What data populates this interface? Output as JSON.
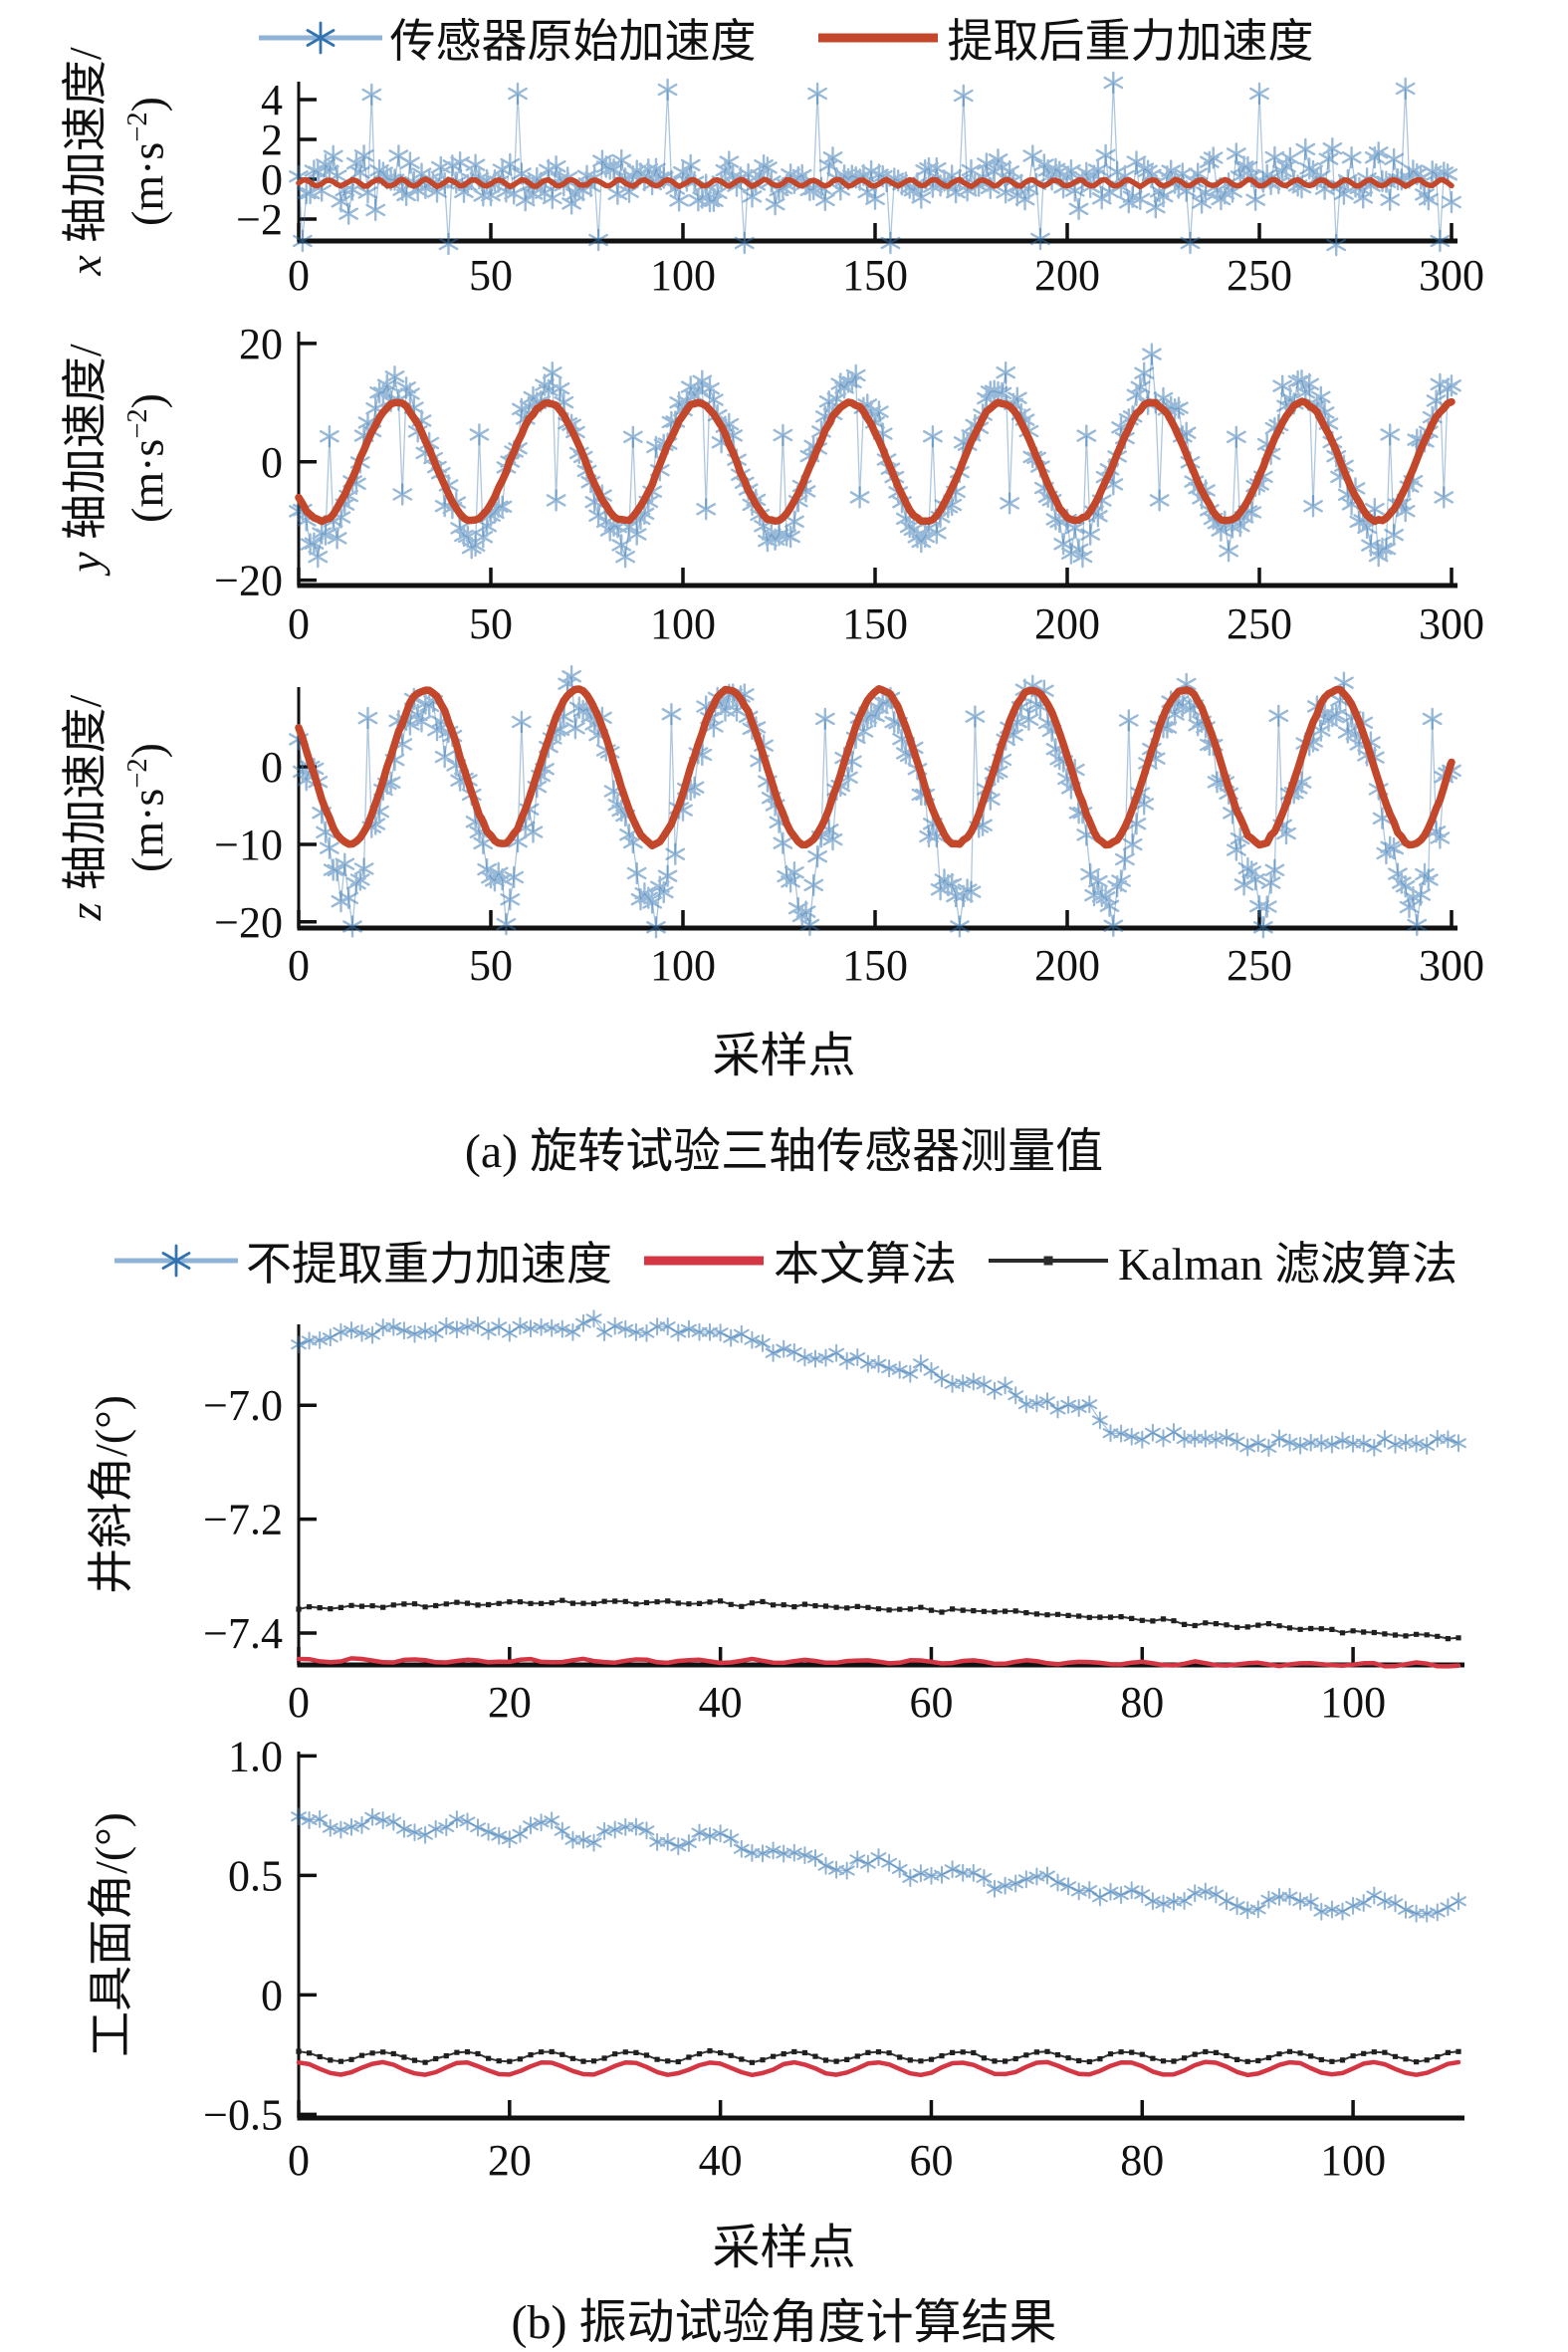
{
  "figure": {
    "background": "#ffffff"
  },
  "section_a": {
    "xlabel": "采样点",
    "caption": "(a) 旋转试验三轴传感器测量值"
  },
  "section_b": {
    "xlabel": "采样点",
    "caption": "(b) 振动试验角度计算结果"
  },
  "legend_a": {
    "items": [
      {
        "label": "传感器原始加速度",
        "symbol": "asterisk-line",
        "color": "#3273AF",
        "line_color": "#8FB3D6"
      },
      {
        "label": "提取后重力加速度",
        "symbol": "line",
        "color": "#C3472B"
      }
    ]
  },
  "legend_b": {
    "items": [
      {
        "label": "不提取重力加速度",
        "symbol": "asterisk-line",
        "color": "#3273AF",
        "line_color": "#8FB3D6"
      },
      {
        "label": "本文算法",
        "symbol": "line",
        "color": "#D43743"
      },
      {
        "label": "Kalman 滤波算法",
        "symbol": "dot-line",
        "color": "#2b2b2b"
      }
    ]
  },
  "chart_data": [
    {
      "id": "x-axis-acceleration",
      "type": "line",
      "n": 301,
      "grid": false,
      "xlim": [
        0,
        300
      ],
      "ylim": [
        -3.1,
        4.9
      ],
      "xticks": [
        0,
        50,
        100,
        150,
        200,
        250,
        300
      ],
      "xtick_labels": [
        "0",
        "50",
        "100",
        "150",
        "200",
        "250",
        "300"
      ],
      "yticks": [
        4,
        2,
        0,
        -2
      ],
      "ytick_labels": [
        "4",
        "2",
        "0",
        "−2"
      ],
      "ylabel": {
        "var": "x",
        "cn": "轴加速度/",
        "unit_pre": "(m·s",
        "unit_sup": "−2",
        "unit_post": ")"
      },
      "series": [
        {
          "name": "传感器原始加速度",
          "color": "#3273AF",
          "marker": "asterisk",
          "marker_size": 10,
          "marker_lw": 2.4,
          "marker_alpha": 0.5,
          "line_width": 1.3,
          "line_alpha": 0.4,
          "model": {
            "kind": "flat",
            "base": -0.05,
            "noise": 0.62,
            "spikes_x": [
              1,
              19,
              39,
              57,
              78,
              96,
              116,
              135,
              154,
              173,
              193,
              212,
              232,
              250,
              270,
              288,
              297
            ],
            "spikes_y": [
              -3.1,
              4.25,
              -3.25,
              4.3,
              -3.05,
              4.5,
              -3.2,
              4.3,
              -3.2,
              4.2,
              -3.0,
              4.85,
              -3.2,
              4.3,
              -3.3,
              4.55,
              -3.1
            ]
          }
        },
        {
          "name": "提取后重力加速度",
          "color": "#C3472B",
          "marker": "none",
          "line_width": 5.5,
          "line_alpha": 1,
          "model": {
            "kind": "flat",
            "base": -0.18,
            "ripple": [
              0.16,
              6.3,
              0
            ],
            "noise": 0.018
          }
        }
      ]
    },
    {
      "id": "y-axis-acceleration",
      "type": "line",
      "n": 301,
      "grid": false,
      "xlim": [
        0,
        300
      ],
      "ylim": [
        -20.9,
        22
      ],
      "xticks": [
        0,
        50,
        100,
        150,
        200,
        250,
        300
      ],
      "xtick_labels": [
        "0",
        "50",
        "100",
        "150",
        "200",
        "250",
        "300"
      ],
      "yticks": [
        20,
        0,
        -20
      ],
      "ytick_labels": [
        "20",
        "0",
        "−20"
      ],
      "ylabel": {
        "var": "y",
        "cn": "轴加速度/",
        "unit_pre": "(m·s",
        "unit_sup": "−2",
        "unit_post": ")"
      },
      "series": [
        {
          "name": "传感器原始加速度",
          "color": "#3273AF",
          "marker": "asterisk",
          "marker_size": 10,
          "marker_lw": 2.4,
          "marker_alpha": 0.5,
          "line_width": 1.3,
          "line_alpha": 0.4,
          "model": {
            "kind": "sine",
            "center": 0,
            "amp": 12.9,
            "period": 39.3,
            "peak_x": 25.5,
            "noise": 1.7,
            "spikes_x": [
              8,
              27,
              47,
              67,
              87,
              106,
              126,
              146,
              165,
              185,
              205,
              224,
              244,
              264,
              284,
              298
            ],
            "spikes_y": [
              4.3,
              -5.5,
              4.6,
              -6.5,
              4.2,
              -8,
              4.5,
              -6,
              4.3,
              -7,
              4.4,
              -6.5,
              4.2,
              -7.5,
              4.6,
              -6
            ]
          }
        },
        {
          "name": "提取后重力加速度",
          "color": "#C3472B",
          "marker": "none",
          "line_width": 7.5,
          "line_alpha": 1,
          "model": {
            "kind": "sine",
            "center": 0,
            "amp": 10,
            "period": 39.3,
            "peak_x": 25.5,
            "noise": 0.12
          }
        }
      ]
    },
    {
      "id": "z-axis-acceleration",
      "type": "line",
      "n": 301,
      "grid": false,
      "xlim": [
        0,
        300
      ],
      "ylim": [
        -20.8,
        10.3
      ],
      "xticks": [
        0,
        50,
        100,
        150,
        200,
        250,
        300
      ],
      "xtick_labels": [
        "0",
        "50",
        "100",
        "150",
        "200",
        "250",
        "300"
      ],
      "yticks": [
        0,
        -10,
        -20
      ],
      "ytick_labels": [
        "0",
        "−10",
        "−20"
      ],
      "ylabel": {
        "var": "z",
        "cn": "轴加速度/",
        "unit_pre": "(m·s",
        "unit_sup": "−2",
        "unit_post": ")"
      },
      "series": [
        {
          "name": "传感器原始加速度",
          "color": "#3273AF",
          "marker": "asterisk",
          "marker_size": 10,
          "marker_lw": 2.4,
          "marker_alpha": 0.5,
          "line_width": 1.3,
          "line_alpha": 0.4,
          "model": {
            "kind": "sine",
            "center": -1.4,
            "amp": 9.6,
            "period": 39.5,
            "peak_x": 33,
            "noise": 1.55,
            "dip": 6.2,
            "spikes_x": [
              14,
              18,
              54,
              58,
              93,
              97,
              133,
              137,
              172,
              176,
              212,
              216,
              251,
              255,
              291,
              295
            ],
            "spikes_y": [
              -20.6,
              6.3,
              -20.3,
              5.8,
              -20.7,
              6.8,
              -20.4,
              6.2,
              -20.6,
              6.5,
              -20.5,
              6.0,
              -20.7,
              6.6,
              -20.4,
              6.2
            ]
          }
        },
        {
          "name": "提取后重力加速度",
          "color": "#C3472B",
          "marker": "none",
          "line_width": 7.5,
          "line_alpha": 1,
          "model": {
            "kind": "sine",
            "center": 0,
            "amp": 10,
            "period": 39.5,
            "peak_x": 33,
            "noise": 0.1
          }
        }
      ]
    },
    {
      "id": "inclination-angle",
      "type": "line",
      "n": 111,
      "grid": false,
      "xlim": [
        0,
        110
      ],
      "ylim": [
        -7.456,
        -6.858
      ],
      "xticks": [
        0,
        20,
        40,
        60,
        80,
        100
      ],
      "xtick_labels": [
        "0",
        "20",
        "40",
        "60",
        "80",
        "100"
      ],
      "yticks": [
        -7.0,
        -7.2,
        -7.4
      ],
      "ytick_labels": [
        "−7.0",
        "−7.2",
        "−7.4"
      ],
      "ylabel": {
        "text": "井斜角/(°)"
      },
      "series": [
        {
          "name": "不提取重力加速度",
          "color": "#3273AF",
          "marker": "asterisk",
          "marker_size": 8,
          "marker_lw": 2,
          "marker_alpha": 0.55,
          "line_width": 1.2,
          "line_alpha": 0.45,
          "model": {
            "kind": "piecewise",
            "noise": 0.0052,
            "breakpoints": [
              [
                0,
                -6.888
              ],
              [
                4,
                -6.877
              ],
              [
                10,
                -6.87
              ],
              [
                18,
                -6.866
              ],
              [
                26,
                -6.864
              ],
              [
                34,
                -6.867
              ],
              [
                40,
                -6.872
              ],
              [
                43,
                -6.88
              ],
              [
                45,
                -6.908
              ],
              [
                52,
                -6.918
              ],
              [
                54,
                -6.93
              ],
              [
                60,
                -6.936
              ],
              [
                62,
                -6.962
              ],
              [
                67,
                -6.968
              ],
              [
                69,
                -6.998
              ],
              [
                75,
                -7.004
              ],
              [
                77,
                -7.048
              ],
              [
                83,
                -7.056
              ],
              [
                90,
                -7.062
              ],
              [
                96,
                -7.068
              ],
              [
                101,
                -7.068
              ],
              [
                105,
                -7.064
              ],
              [
                110,
                -7.067
              ]
            ]
          }
        },
        {
          "name": "Kalman 滤波算法",
          "color": "#1f1f1f",
          "marker": "dot",
          "marker_size": 2.6,
          "line_width": 2,
          "line_alpha": 0.9,
          "model": {
            "kind": "piecewise",
            "ripple": [
              0.0022,
              4.8,
              0.5
            ],
            "noise": 0.0012,
            "breakpoints": [
              [
                0,
                -7.357
              ],
              [
                8,
                -7.352
              ],
              [
                16,
                -7.349
              ],
              [
                24,
                -7.347
              ],
              [
                32,
                -7.346
              ],
              [
                40,
                -7.347
              ],
              [
                48,
                -7.352
              ],
              [
                56,
                -7.356
              ],
              [
                62,
                -7.36
              ],
              [
                68,
                -7.362
              ],
              [
                72,
                -7.368
              ],
              [
                78,
                -7.374
              ],
              [
                84,
                -7.381
              ],
              [
                90,
                -7.387
              ],
              [
                96,
                -7.392
              ],
              [
                101,
                -7.398
              ],
              [
                105,
                -7.404
              ],
              [
                110,
                -7.407
              ]
            ]
          }
        },
        {
          "name": "本文算法",
          "color": "#D43743",
          "marker": "none",
          "line_width": 4.5,
          "line_alpha": 1,
          "model": {
            "kind": "piecewise",
            "ripple": [
              0.003,
              5.3,
              1.2
            ],
            "noise": 0.0008,
            "breakpoints": [
              [
                0,
                -7.4485
              ],
              [
                40,
                -7.4495
              ],
              [
                70,
                -7.451
              ],
              [
                85,
                -7.4545
              ],
              [
                110,
                -7.4555
              ]
            ]
          }
        }
      ]
    },
    {
      "id": "toolface-angle",
      "type": "line",
      "n": 111,
      "grid": false,
      "xlim": [
        0,
        110
      ],
      "ylim": [
        -0.515,
        1.018
      ],
      "xticks": [
        0,
        20,
        40,
        60,
        80,
        100
      ],
      "xtick_labels": [
        "0",
        "20",
        "40",
        "60",
        "80",
        "100"
      ],
      "yticks": [
        1.0,
        0.5,
        0,
        -0.5
      ],
      "ytick_labels": [
        "1.0",
        "0.5",
        "0",
        "−0.5"
      ],
      "ylabel": {
        "text": "工具面角/(°)"
      },
      "series": [
        {
          "name": "不提取重力加速度",
          "color": "#3273AF",
          "marker": "asterisk",
          "marker_size": 8,
          "marker_lw": 2,
          "marker_alpha": 0.55,
          "line_width": 1.2,
          "line_alpha": 0.45,
          "model": {
            "kind": "piecewise",
            "ripple": [
              0.027,
              7.85,
              1.6
            ],
            "noise": 0.01,
            "breakpoints": [
              [
                0,
                0.72
              ],
              [
                6,
                0.715
              ],
              [
                12,
                0.705
              ],
              [
                20,
                0.69
              ],
              [
                28,
                0.675
              ],
              [
                36,
                0.655
              ],
              [
                44,
                0.63
              ],
              [
                46,
                0.57
              ],
              [
                55,
                0.55
              ],
              [
                57,
                0.52
              ],
              [
                64,
                0.5
              ],
              [
                66,
                0.478
              ],
              [
                74,
                0.462
              ],
              [
                76,
                0.422
              ],
              [
                84,
                0.402
              ],
              [
                92,
                0.387
              ],
              [
                100,
                0.377
              ],
              [
                106,
                0.362
              ],
              [
                110,
                0.35
              ]
            ]
          }
        },
        {
          "name": "Kalman 滤波算法",
          "color": "#1f1f1f",
          "marker": "dot",
          "marker_size": 2.6,
          "line_width": 2,
          "line_alpha": 0.9,
          "model": {
            "kind": "flat",
            "base": -0.258,
            "ripple": [
              0.0205,
              7.85,
              1.6
            ],
            "noise": 0.0018
          }
        },
        {
          "name": "本文算法",
          "color": "#D43743",
          "marker": "none",
          "line_width": 4.5,
          "line_alpha": 1,
          "model": {
            "kind": "flat",
            "base": -0.308,
            "ripple": [
              0.0265,
              7.85,
              1.6
            ],
            "noise": 0.0012
          }
        }
      ]
    }
  ]
}
